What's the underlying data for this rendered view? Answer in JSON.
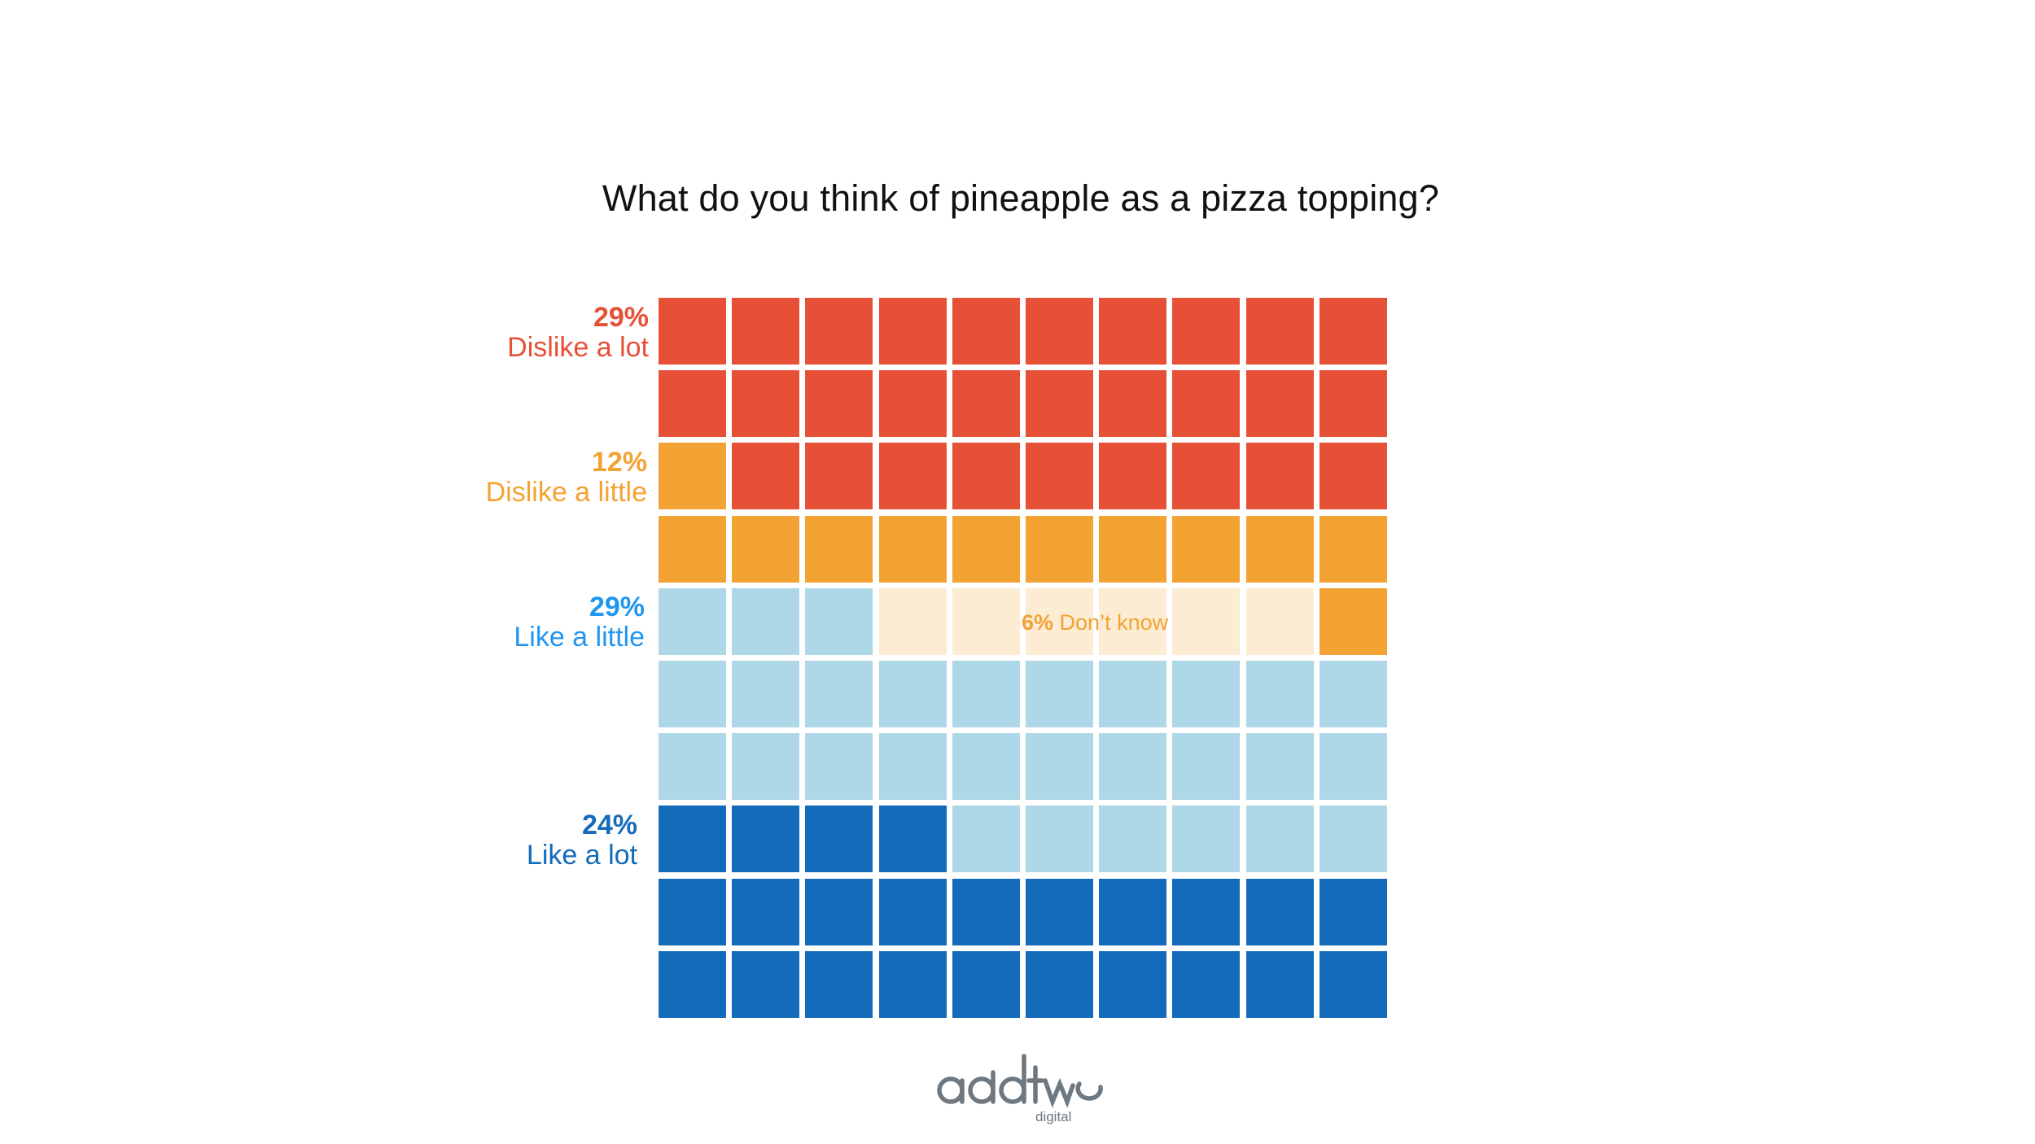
{
  "title": "What do you think of pineapple as a pizza topping?",
  "colors": {
    "dislike_a_lot": "#e65036",
    "dislike_a_little": "#f3a234",
    "dont_know": "#fcecd4",
    "like_a_little": "#aed8e7",
    "like_a_lot": "#136bba"
  },
  "labels": [
    {
      "key": "dislike_a_lot",
      "pct": "29%",
      "name": "Dislike a lot",
      "color": "#e65036"
    },
    {
      "key": "dislike_a_little",
      "pct": "12%",
      "name": "Dislike a little",
      "color": "#f3a234"
    },
    {
      "key": "like_a_little",
      "pct": "29%",
      "name": "Like a little",
      "color": "#2196f0"
    },
    {
      "key": "like_a_lot",
      "pct": "24%",
      "name": "Like a lot",
      "color": "#136bba"
    }
  ],
  "dont_know": {
    "pct": "6%",
    "name": "Don’t know"
  },
  "logo": {
    "main": "addtwo",
    "sub": "digital"
  },
  "grid": {
    "rows": 10,
    "cols": 10,
    "cells": [
      "dislike_a_lot",
      "dislike_a_lot",
      "dislike_a_lot",
      "dislike_a_lot",
      "dislike_a_lot",
      "dislike_a_lot",
      "dislike_a_lot",
      "dislike_a_lot",
      "dislike_a_lot",
      "dislike_a_lot",
      "dislike_a_lot",
      "dislike_a_lot",
      "dislike_a_lot",
      "dislike_a_lot",
      "dislike_a_lot",
      "dislike_a_lot",
      "dislike_a_lot",
      "dislike_a_lot",
      "dislike_a_lot",
      "dislike_a_lot",
      "dislike_a_little",
      "dislike_a_lot",
      "dislike_a_lot",
      "dislike_a_lot",
      "dislike_a_lot",
      "dislike_a_lot",
      "dislike_a_lot",
      "dislike_a_lot",
      "dislike_a_lot",
      "dislike_a_lot",
      "dislike_a_little",
      "dislike_a_little",
      "dislike_a_little",
      "dislike_a_little",
      "dislike_a_little",
      "dislike_a_little",
      "dislike_a_little",
      "dislike_a_little",
      "dislike_a_little",
      "dislike_a_little",
      "like_a_little",
      "like_a_little",
      "like_a_little",
      "dont_know",
      "dont_know",
      "dont_know",
      "dont_know",
      "dont_know",
      "dont_know",
      "dislike_a_little",
      "like_a_little",
      "like_a_little",
      "like_a_little",
      "like_a_little",
      "like_a_little",
      "like_a_little",
      "like_a_little",
      "like_a_little",
      "like_a_little",
      "like_a_little",
      "like_a_little",
      "like_a_little",
      "like_a_little",
      "like_a_little",
      "like_a_little",
      "like_a_little",
      "like_a_little",
      "like_a_little",
      "like_a_little",
      "like_a_little",
      "like_a_lot",
      "like_a_lot",
      "like_a_lot",
      "like_a_lot",
      "like_a_little",
      "like_a_little",
      "like_a_little",
      "like_a_little",
      "like_a_little",
      "like_a_little",
      "like_a_lot",
      "like_a_lot",
      "like_a_lot",
      "like_a_lot",
      "like_a_lot",
      "like_a_lot",
      "like_a_lot",
      "like_a_lot",
      "like_a_lot",
      "like_a_lot",
      "like_a_lot",
      "like_a_lot",
      "like_a_lot",
      "like_a_lot",
      "like_a_lot",
      "like_a_lot",
      "like_a_lot",
      "like_a_lot",
      "like_a_lot",
      "like_a_lot"
    ]
  },
  "chart_data": {
    "type": "waffle",
    "title": "What do you think of pineapple as a pizza topping?",
    "categories": [
      "Dislike a lot",
      "Dislike a little",
      "Don't know",
      "Like a little",
      "Like a lot"
    ],
    "values": [
      29,
      12,
      6,
      29,
      24
    ],
    "unit": "%",
    "grid": "10x10",
    "xlabel": "",
    "ylabel": "",
    "legend_position": "left (inline labels)"
  }
}
